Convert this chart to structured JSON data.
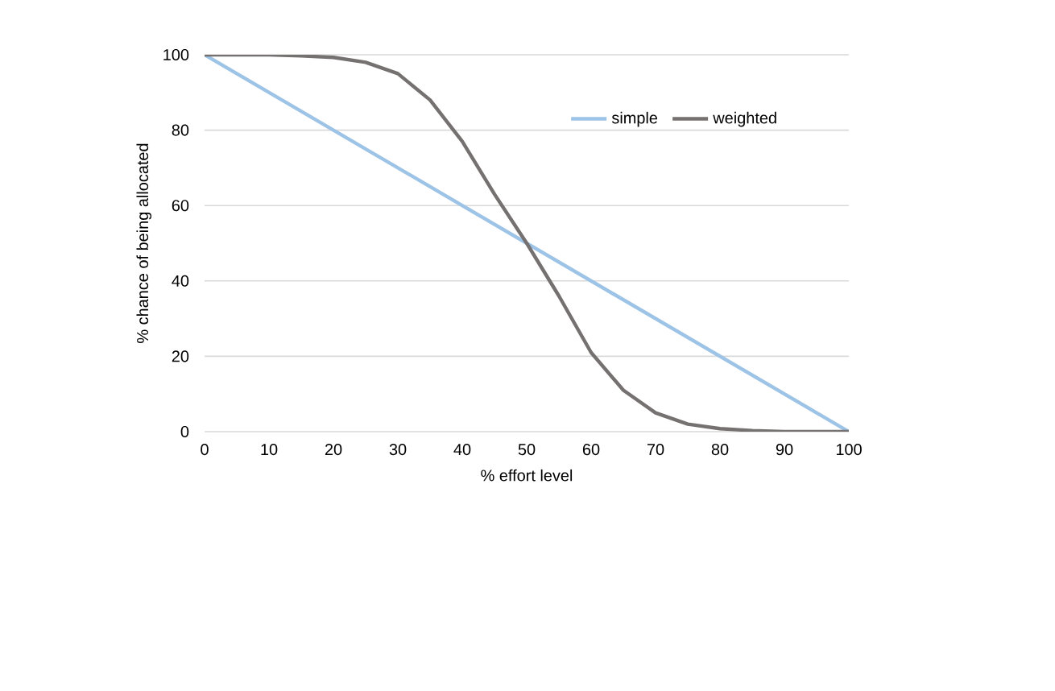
{
  "chart_data": {
    "type": "line",
    "xlabel": "% effort level",
    "ylabel": "% chance of being allocated",
    "x": [
      0,
      5,
      10,
      15,
      20,
      25,
      30,
      35,
      40,
      45,
      50,
      55,
      60,
      65,
      70,
      75,
      80,
      85,
      90,
      95,
      100
    ],
    "series": [
      {
        "name": "simple",
        "color": "#9dc3e6",
        "x": [
          0,
          100
        ],
        "values": [
          100,
          0
        ]
      },
      {
        "name": "weighted",
        "color": "#767171",
        "values": [
          100,
          100,
          100,
          99.7,
          99.3,
          98,
          95,
          88,
          77,
          63,
          50,
          36,
          21,
          11,
          5,
          2,
          0.8,
          0.3,
          0,
          0,
          0
        ]
      }
    ],
    "xlim": [
      0,
      100
    ],
    "xticks": [
      0,
      10,
      20,
      30,
      40,
      50,
      60,
      70,
      80,
      90,
      100
    ],
    "ylim": [
      0,
      100
    ],
    "yticks": [
      0,
      20,
      40,
      60,
      80,
      100
    ],
    "grid": "y",
    "legend": "top right",
    "marker": "none",
    "line_style": "solid"
  }
}
